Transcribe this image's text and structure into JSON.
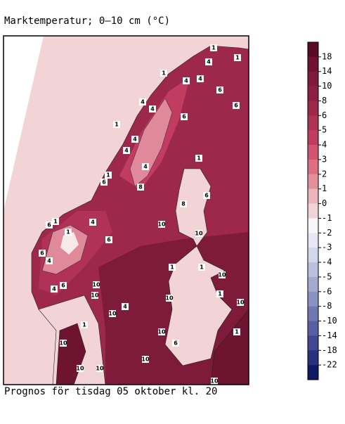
{
  "title": "Marktemperatur; 0–10 cm (°C)",
  "footer": "Prognos för tisdag 05 oktober kl. 20",
  "colorbar": {
    "levels": [
      18,
      14,
      10,
      8,
      6,
      5,
      4,
      3,
      2,
      1,
      0,
      -1,
      -2,
      -3,
      -4,
      -5,
      -6,
      -8,
      -10,
      -14,
      -18,
      -22
    ],
    "colors": [
      "#5a0a22",
      "#6e1430",
      "#7e1a3a",
      "#8c1f42",
      "#9e284b",
      "#b03257",
      "#c23c62",
      "#d25470",
      "#dc7082",
      "#e4909b",
      "#ecb4bb",
      "#f2d4d7",
      "#f7f7fa",
      "#e8e8f4",
      "#d4d6ea",
      "#bcc0de",
      "#a4aad2",
      "#8a92c4",
      "#7078b4",
      "#5860a4",
      "#404894",
      "#283080",
      "#101866"
    ]
  },
  "map_labels": [
    1,
    1,
    4,
    1,
    4,
    4,
    6,
    6,
    4,
    4,
    1,
    6,
    4,
    4,
    1,
    4,
    1,
    6,
    8,
    6,
    8,
    1,
    6,
    4,
    10,
    1,
    6,
    10,
    6,
    4,
    1,
    1,
    10,
    6,
    4,
    10,
    10,
    1,
    10,
    10,
    4,
    10,
    1,
    10,
    1,
    10,
    6,
    10,
    10,
    10,
    10
  ]
}
